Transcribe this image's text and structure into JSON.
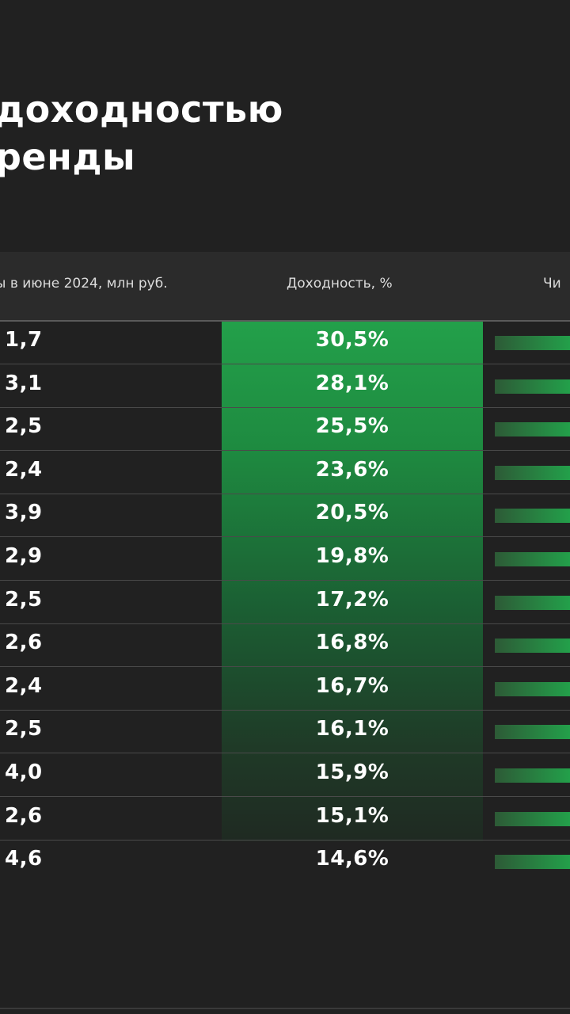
{
  "header": {
    "title_line1": "доходностью",
    "title_line2": "ренды"
  },
  "colors": {
    "background": "#212121",
    "accent_green": "#23a04a",
    "header_bg": "#2b2b2b"
  },
  "chart_data": {
    "type": "table",
    "columns": [
      "ы в июне 2024, млн руб.",
      "Доходность, %",
      "Чи"
    ],
    "rows": [
      {
        "price": "1,7",
        "yield": "30,5%"
      },
      {
        "price": "3,1",
        "yield": "28,1%"
      },
      {
        "price": "2,5",
        "yield": "25,5%"
      },
      {
        "price": "2,4",
        "yield": "23,6%"
      },
      {
        "price": "3,9",
        "yield": "20,5%"
      },
      {
        "price": "2,9",
        "yield": "19,8%"
      },
      {
        "price": "2,5",
        "yield": "17,2%"
      },
      {
        "price": "2,6",
        "yield": "16,8%"
      },
      {
        "price": "2,4",
        "yield": "16,7%"
      },
      {
        "price": "2,5",
        "yield": "16,1%"
      },
      {
        "price": "4,0",
        "yield": "15,9%"
      },
      {
        "price": "2,6",
        "yield": "15,1%"
      },
      {
        "price": "4,6",
        "yield": "14,6%"
      }
    ]
  }
}
